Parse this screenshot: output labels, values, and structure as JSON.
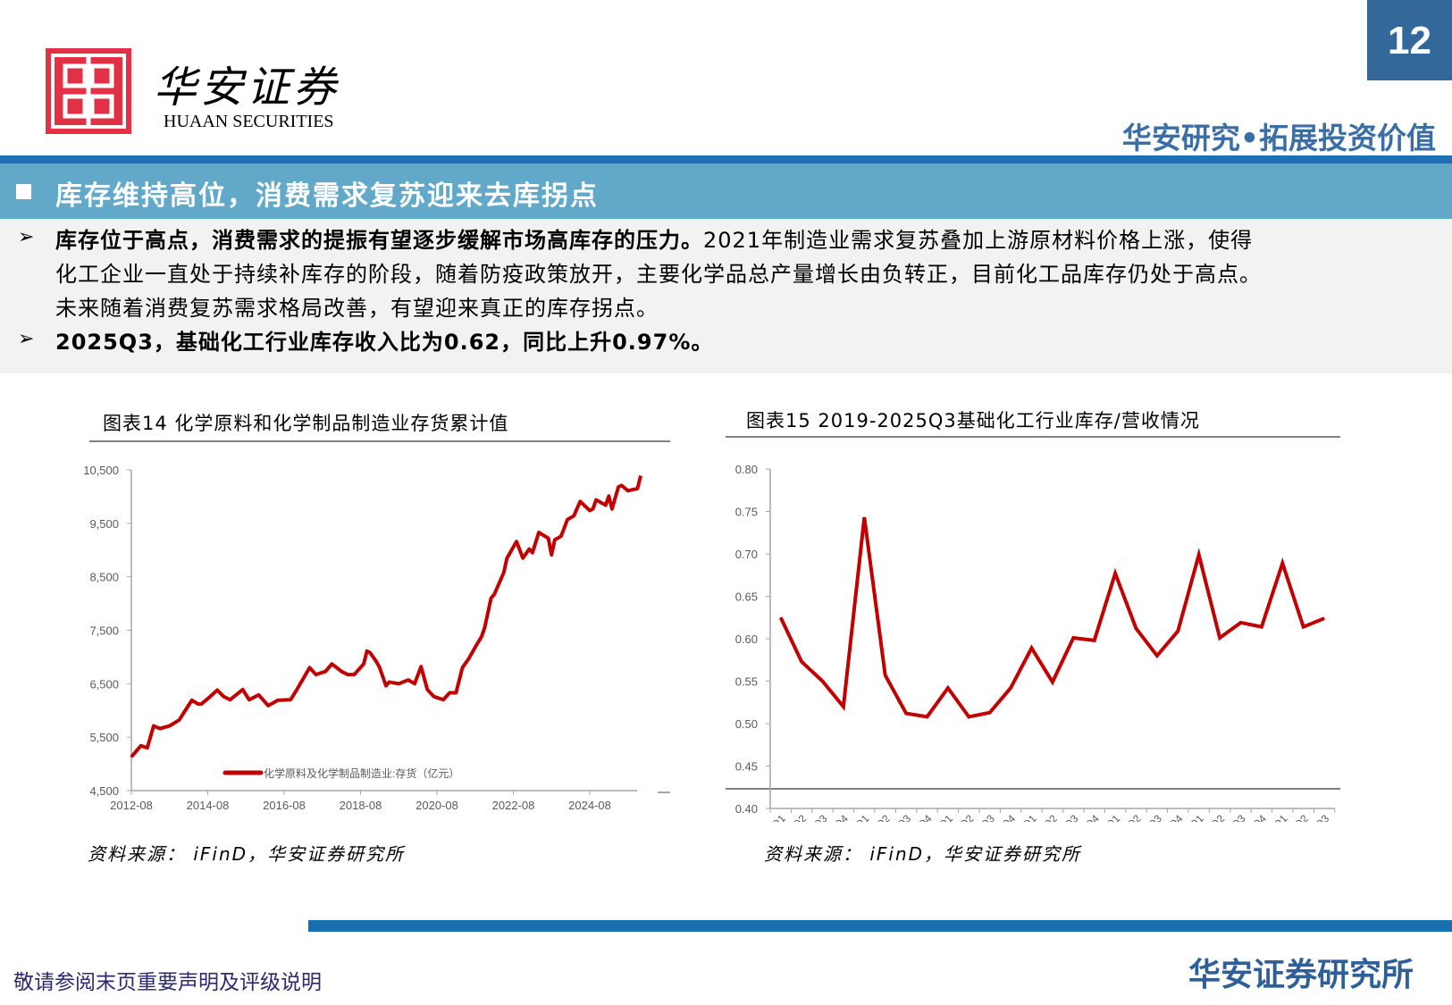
{
  "header": {
    "logo_cn": "华安证券",
    "logo_en": "HUAAN SECURITIES",
    "page_number": "12",
    "slogan": "华安研究•拓展投资价值"
  },
  "section": {
    "title": "库存维持高位，消费需求复苏迎来去库拐点"
  },
  "bullets": [
    {
      "bold": "库存位于高点，消费需求的提振有望逐步缓解市场高库存的压力。",
      "text_line1": "2021年制造业需求复苏叠加上游原材料价格上涨，使得",
      "text_line2": "化工企业一直处于持续补库存的阶段，随着防疫政策放开，主要化学品总产量增长由负转正，目前化工品库存仍处于高点。",
      "text_line3": "未来随着消费复苏需求格局改善，有望迎来真正的库存拐点。"
    },
    {
      "bold": "2025Q3，基础化工行业库存收入比为0.62，同比上升0.97%。"
    }
  ],
  "charts_text": {
    "left_title": "图表14 化学原料和化学制品制造业存货累计值",
    "right_title": "图表15 2019-2025Q3基础化工行业库存/营收情况",
    "left_source": "资料来源：  iFinD，华安证券研究所",
    "right_source": "资料来源：  iFinD，华安证券研究所"
  },
  "footer": {
    "disclaimer": "敬请参阅末页重要声明及评级说明",
    "brand": "华安证券研究所"
  },
  "colors": {
    "line": "#c00000",
    "brand_blue": "#1f6fb5",
    "band": "#62a8c8",
    "logo_red": "#e23146"
  },
  "chart_data": [
    {
      "type": "line",
      "title": "图表14 化学原料和化学制品制造业存货累计值",
      "ylim": [
        4500,
        10500
      ],
      "yticks": [
        4500,
        5500,
        6500,
        7500,
        8500,
        9500,
        10500
      ],
      "xticks": [
        "2012-08",
        "2014-08",
        "2016-08",
        "2018-08",
        "2020-08",
        "2022-08",
        "2024-08"
      ],
      "legend": "bottom",
      "grid": false,
      "series": [
        {
          "name": "化学原料及化学制品制造业:存货（亿元）",
          "x": [
            "2012-08",
            "2012-11",
            "2013-01",
            "2013-03",
            "2013-05",
            "2013-08",
            "2013-11",
            "2014-03",
            "2014-05",
            "2014-06",
            "2014-08",
            "2014-11",
            "2015-01",
            "2015-03",
            "2015-07",
            "2015-09",
            "2015-12",
            "2016-03",
            "2016-06",
            "2016-10",
            "2016-12",
            "2017-04",
            "2017-06",
            "2017-09",
            "2017-11",
            "2018-02",
            "2018-04",
            "2018-06",
            "2018-09",
            "2018-10",
            "2018-11",
            "2019-01",
            "2019-02",
            "2019-04",
            "2019-05",
            "2019-08",
            "2019-11",
            "2020-01",
            "2020-03",
            "2020-05",
            "2020-07",
            "2020-10",
            "2020-12",
            "2021-02",
            "2021-04",
            "2021-06",
            "2021-08",
            "2021-10",
            "2021-11",
            "2022-01",
            "2022-02",
            "2022-05",
            "2022-06",
            "2022-09",
            "2022-11",
            "2023-01",
            "2023-02",
            "2023-04",
            "2023-07",
            "2023-08",
            "2023-09",
            "2023-11",
            "2024-01",
            "2024-03",
            "2024-05",
            "2024-08",
            "2024-09",
            "2024-10",
            "2025-01",
            "2025-02",
            "2025-03",
            "2025-05",
            "2025-06",
            "2025-08",
            "2025-11",
            "2025-12"
          ],
          "values": [
            5130,
            5340,
            5300,
            5710,
            5660,
            5710,
            5820,
            6190,
            6120,
            6120,
            6220,
            6380,
            6260,
            6200,
            6390,
            6200,
            6290,
            6090,
            6190,
            6200,
            6390,
            6800,
            6670,
            6730,
            6870,
            6730,
            6670,
            6670,
            6870,
            7110,
            7080,
            6910,
            6800,
            6460,
            6530,
            6500,
            6570,
            6500,
            6820,
            6390,
            6260,
            6200,
            6330,
            6330,
            6800,
            6970,
            7180,
            7380,
            7550,
            8100,
            8170,
            8580,
            8850,
            9160,
            8850,
            9020,
            8950,
            9330,
            9220,
            8910,
            9190,
            9260,
            9570,
            9640,
            9910,
            9740,
            9770,
            9940,
            9840,
            10010,
            9770,
            10180,
            10210,
            10110,
            10150,
            10390
          ]
        }
      ]
    },
    {
      "type": "line",
      "title": "图表15 2019-2025Q3基础化工行业库存/营收情况",
      "ylim": [
        0.4,
        0.8
      ],
      "yticks": [
        "0.40",
        "0.45",
        "0.50",
        "0.55",
        "0.60",
        "0.65",
        "0.70",
        "0.75",
        "0.80"
      ],
      "grid": false,
      "categories": [
        "2019Q1",
        "2019Q2",
        "2019Q3",
        "2019Q4",
        "2020Q1",
        "2020Q2",
        "2020Q3",
        "2020Q4",
        "2021Q1",
        "2021Q2",
        "2021Q3",
        "2021Q4",
        "2022Q1",
        "2022Q2",
        "2022Q3",
        "2022Q4",
        "2023Q1",
        "2023Q2",
        "2023Q3",
        "2023Q4",
        "2024Q1",
        "2024Q2",
        "2024Q3",
        "2024Q4",
        "2025Q1",
        "2025Q2",
        "2025Q3"
      ],
      "series": [
        {
          "values": [
            0.625,
            0.573,
            0.55,
            0.52,
            0.743,
            0.557,
            0.512,
            0.508,
            0.542,
            0.508,
            0.513,
            0.542,
            0.589,
            0.549,
            0.601,
            0.598,
            0.677,
            0.612,
            0.58,
            0.609,
            0.699,
            0.601,
            0.619,
            0.614,
            0.689,
            0.614,
            0.624
          ]
        }
      ]
    }
  ]
}
